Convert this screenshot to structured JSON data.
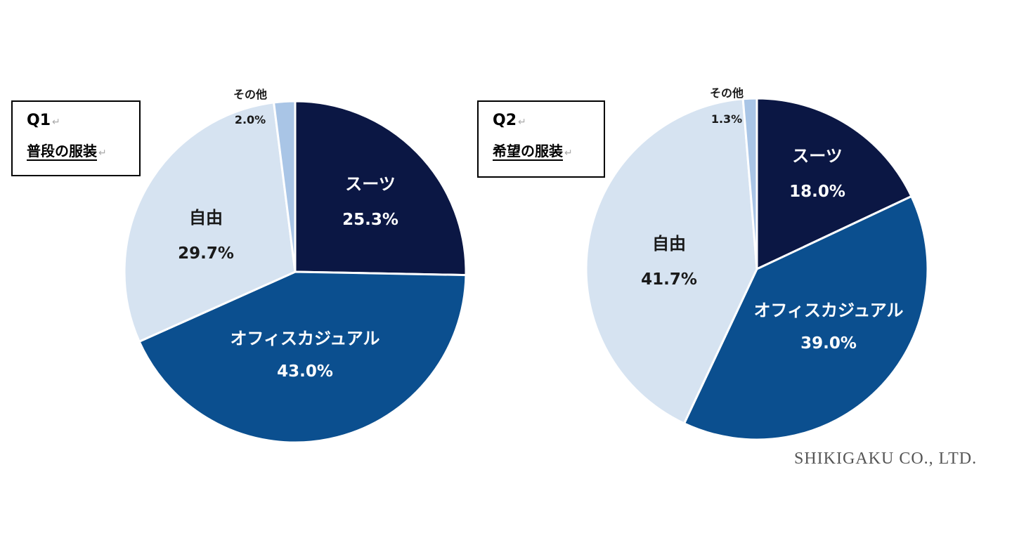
{
  "charts": [
    {
      "question": "Q1",
      "title": "普段の服装"
    },
    {
      "question": "Q2",
      "title": "希望の服装"
    }
  ],
  "footer": "SHIKIGAKU CO., LTD.",
  "return_mark": "↵",
  "colors": {
    "suits": "#0b1744",
    "office_casual": "#0b4f8f",
    "free": "#d6e3f1",
    "other": "#a9c5e6"
  },
  "chart_data": [
    {
      "type": "pie",
      "title": "普段の服装",
      "slices": [
        {
          "label": "スーツ",
          "value": 25.3,
          "display": "25.3%",
          "color": "#0b1744"
        },
        {
          "label": "オフィスカジュアル",
          "value": 43.0,
          "display": "43.0%",
          "color": "#0b4f8f"
        },
        {
          "label": "自由",
          "value": 29.7,
          "display": "29.7%",
          "color": "#d6e3f1"
        },
        {
          "label": "その他",
          "value": 2.0,
          "display": "2.0%",
          "color": "#a9c5e6"
        }
      ]
    },
    {
      "type": "pie",
      "title": "希望の服装",
      "slices": [
        {
          "label": "スーツ",
          "value": 18.0,
          "display": "18.0%",
          "color": "#0b1744"
        },
        {
          "label": "オフィスカジュアル",
          "value": 39.0,
          "display": "39.0%",
          "color": "#0b4f8f"
        },
        {
          "label": "自由",
          "value": 41.7,
          "display": "41.7%",
          "color": "#d6e3f1"
        },
        {
          "label": "その他",
          "value": 1.3,
          "display": "1.3%",
          "color": "#a9c5e6"
        }
      ]
    }
  ]
}
